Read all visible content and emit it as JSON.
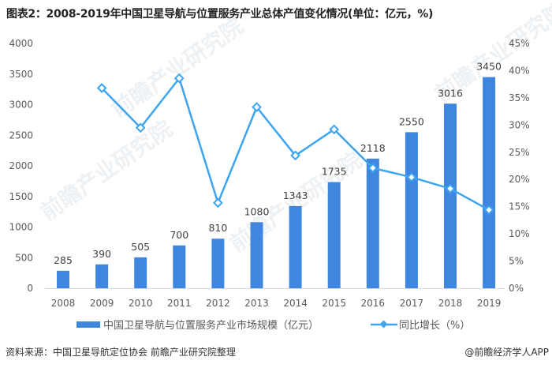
{
  "title": "图表2：2008-2019年中国卫星导航与位置服务产业总体产值变化情况(单位：亿元，%)",
  "chart_data": {
    "type": "bar+line",
    "categories": [
      "2008",
      "2009",
      "2010",
      "2011",
      "2012",
      "2013",
      "2014",
      "2015",
      "2016",
      "2017",
      "2018",
      "2019"
    ],
    "series": [
      {
        "name": "中国卫星导航与位置服务产业市场规模（亿元）",
        "type": "bar",
        "axis": "left",
        "color": "#3F86E0",
        "values": [
          285,
          390,
          505,
          700,
          810,
          1080,
          1343,
          1735,
          2118,
          2550,
          3016,
          3450
        ]
      },
      {
        "name": "同比增长（%）",
        "type": "line",
        "axis": "right",
        "color": "#3DA5F0",
        "values": [
          null,
          36.8,
          29.5,
          38.6,
          15.7,
          33.3,
          24.4,
          29.2,
          22.1,
          20.4,
          18.3,
          14.4
        ]
      }
    ],
    "left_axis": {
      "ylim": [
        0,
        4000
      ],
      "ticks": [
        "0",
        "500",
        "1000",
        "1500",
        "2000",
        "2500",
        "3000",
        "3500",
        "4000"
      ]
    },
    "right_axis": {
      "ylim": [
        0,
        45
      ],
      "ticks": [
        "0%",
        "5%",
        "10%",
        "15%",
        "20%",
        "25%",
        "30%",
        "35%",
        "40%",
        "45%"
      ]
    },
    "grid": false,
    "legend": "bottom"
  },
  "legend": {
    "bar_label": "中国卫星导航与位置服务产业市场规模（亿元）",
    "line_label": "同比增长（%）"
  },
  "source": "资料来源：中国卫星导航定位协会 前瞻产业研究院整理",
  "brand": "@前瞻经济学人APP",
  "watermark": "前瞻产业研究院"
}
